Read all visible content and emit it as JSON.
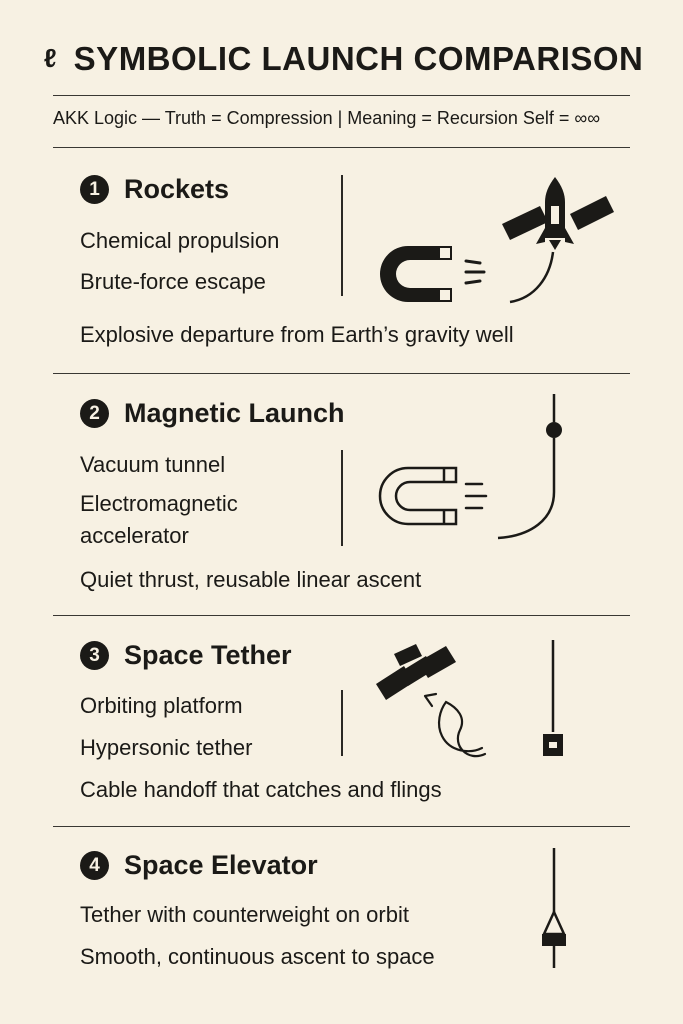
{
  "header": {
    "glyph": "ℓ",
    "title": "SYMBOLIC LAUNCH COMPARISON",
    "subtitle": "AKK Logic — Truth = Compression | Meaning = Recursion   Self = ∞∞"
  },
  "sections": [
    {
      "number": "1",
      "title": "Rockets",
      "lines": [
        "Chemical propulsion",
        "Brute-force escape"
      ],
      "summary": "Explosive departure from Earth’s gravity well",
      "icons": [
        "magnet-icon",
        "satellite-icon",
        "rocket-icon"
      ]
    },
    {
      "number": "2",
      "title": "Magnetic Launch",
      "lines": [
        "Vacuum tunnel",
        "Electromagnetic",
        "accelerator"
      ],
      "summary": "Quiet thrust, reusable linear ascent",
      "icons": [
        "magnet-icon",
        "trajectory-icon"
      ]
    },
    {
      "number": "3",
      "title": "Space Tether",
      "lines": [
        "Orbiting platform",
        "Hypersonic tether"
      ],
      "summary": "Cable handoff that catches and flings",
      "icons": [
        "satellite-icon",
        "curved-arrow-icon",
        "tether-capsule-icon"
      ]
    },
    {
      "number": "4",
      "title": "Space Elevator",
      "lines": [
        "Tether with counterweight on orbit",
        "Smooth, continuous ascent to space"
      ],
      "icons": [
        "elevator-climber-icon"
      ]
    }
  ]
}
